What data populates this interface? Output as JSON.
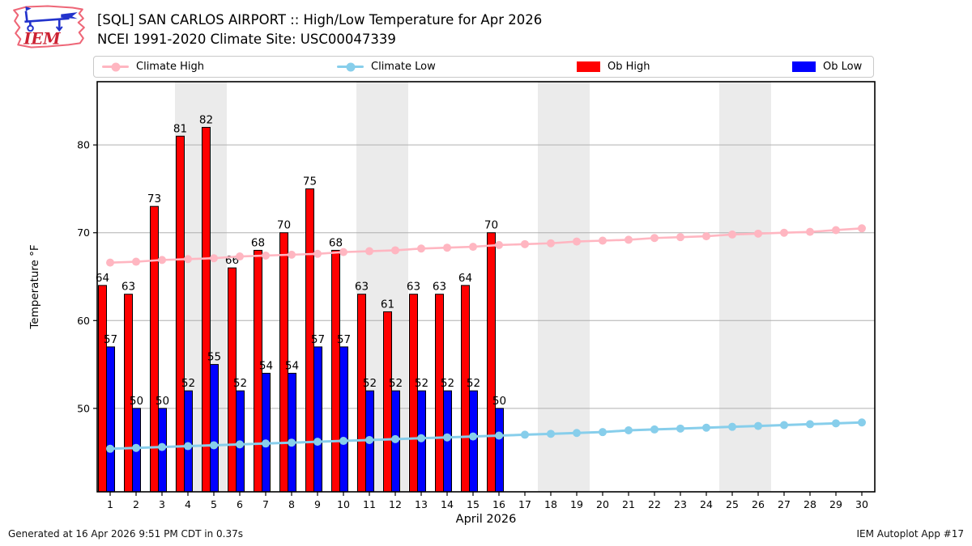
{
  "header": {
    "title": "[SQL] SAN CARLOS AIRPORT :: High/Low Temperature for Apr 2026",
    "subtitle": "NCEI 1991-2020 Climate Site: USC00047339",
    "logo_text": "IEM"
  },
  "legend": {
    "items": [
      {
        "label": "Climate High",
        "type": "line",
        "color": "#ffb6c1"
      },
      {
        "label": "Climate Low",
        "type": "line",
        "color": "#87ceeb"
      },
      {
        "label": "Ob High",
        "type": "patch",
        "color": "#ff0000"
      },
      {
        "label": "Ob Low",
        "type": "patch",
        "color": "#0000ff"
      }
    ]
  },
  "footer": {
    "left": "Generated at 16 Apr 2026 9:51 PM CDT in 0.37s",
    "right": "IEM Autoplot App #17"
  },
  "chart_data": {
    "type": "bar",
    "title": "[SQL] SAN CARLOS AIRPORT :: High/Low Temperature for Apr 2026",
    "subtitle": "NCEI 1991-2020 Climate Site: USC00047339",
    "xlabel": "April 2026",
    "ylabel": "Temperature °F",
    "ylim": [
      40.5,
      87.2
    ],
    "yticks": [
      50,
      60,
      70,
      80
    ],
    "x": [
      1,
      2,
      3,
      4,
      5,
      6,
      7,
      8,
      9,
      10,
      11,
      12,
      13,
      14,
      15,
      16,
      17,
      18,
      19,
      20,
      21,
      22,
      23,
      24,
      25,
      26,
      27,
      28,
      29,
      30
    ],
    "band_color": "#ebebeb",
    "weekend_bands": [
      [
        4,
        5
      ],
      [
        11,
        12
      ],
      [
        18,
        19
      ],
      [
        25,
        26
      ]
    ],
    "grid": "horizontal",
    "legend_position": "top",
    "series": [
      {
        "name": "Ob High",
        "type": "bar",
        "color": "#ff0000",
        "values": [
          64,
          63,
          73,
          81,
          82,
          66,
          68,
          70,
          75,
          68,
          63,
          61,
          63,
          63,
          64,
          70
        ]
      },
      {
        "name": "Ob Low",
        "type": "bar",
        "color": "#0000ff",
        "values": [
          57,
          50,
          50,
          52,
          55,
          52,
          54,
          54,
          57,
          57,
          52,
          52,
          52,
          52,
          52,
          50
        ]
      },
      {
        "name": "Climate High",
        "type": "line",
        "color": "#ffb6c1",
        "values": [
          66.6,
          66.7,
          66.9,
          67.0,
          67.1,
          67.3,
          67.4,
          67.5,
          67.6,
          67.8,
          67.9,
          68.0,
          68.2,
          68.3,
          68.4,
          68.6,
          68.7,
          68.8,
          69.0,
          69.1,
          69.2,
          69.4,
          69.5,
          69.6,
          69.8,
          69.9,
          70.0,
          70.1,
          70.3,
          70.5
        ]
      },
      {
        "name": "Climate Low",
        "type": "line",
        "color": "#87ceeb",
        "values": [
          45.4,
          45.5,
          45.6,
          45.7,
          45.8,
          45.9,
          46.0,
          46.1,
          46.2,
          46.3,
          46.4,
          46.5,
          46.6,
          46.7,
          46.8,
          46.9,
          47.0,
          47.1,
          47.2,
          47.3,
          47.5,
          47.6,
          47.7,
          47.8,
          47.9,
          48.0,
          48.1,
          48.2,
          48.3,
          48.4
        ]
      }
    ]
  }
}
